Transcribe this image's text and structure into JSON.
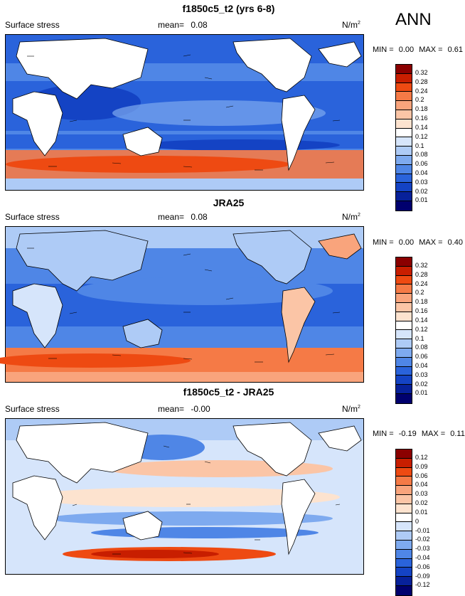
{
  "ann_label": "ANN",
  "panels": [
    {
      "title": "f1850c5_t2 (yrs 6-8)",
      "variable": "Surface stress",
      "mean_label": "mean=",
      "mean_value": "0.08",
      "units_base": "N/m",
      "units_exp": "2",
      "min_label": "MIN =",
      "min_value": "0.00",
      "max_label": "MAX =",
      "max_value": "0.61",
      "levels": [
        "0.32",
        "0.28",
        "0.24",
        "0.2",
        "0.18",
        "0.16",
        "0.14",
        "0.12",
        "0.1",
        "0.08",
        "0.06",
        "0.04",
        "0.03",
        "0.02",
        "0.01"
      ],
      "colors": [
        "#8b0000",
        "#c81e00",
        "#ee4a12",
        "#f57a46",
        "#f9a47c",
        "#fbc5a6",
        "#fde3cf",
        "#ffffff",
        "#d6e5fb",
        "#aecbf6",
        "#7eaaef",
        "#4f86e6",
        "#2a63db",
        "#1443c4",
        "#07219a",
        "#00006e"
      ]
    },
    {
      "title": "JRA25",
      "variable": "Surface stress",
      "mean_label": "mean=",
      "mean_value": "0.08",
      "units_base": "N/m",
      "units_exp": "2",
      "min_label": "MIN =",
      "min_value": "0.00",
      "max_label": "MAX =",
      "max_value": "0.40",
      "levels": [
        "0.32",
        "0.28",
        "0.24",
        "0.2",
        "0.18",
        "0.16",
        "0.14",
        "0.12",
        "0.1",
        "0.08",
        "0.06",
        "0.04",
        "0.03",
        "0.02",
        "0.01"
      ],
      "colors": [
        "#8b0000",
        "#c81e00",
        "#ee4a12",
        "#f57a46",
        "#f9a47c",
        "#fbc5a6",
        "#fde3cf",
        "#ffffff",
        "#d6e5fb",
        "#aecbf6",
        "#7eaaef",
        "#4f86e6",
        "#2a63db",
        "#1443c4",
        "#07219a",
        "#00006e"
      ]
    },
    {
      "title": "f1850c5_t2 - JRA25",
      "variable": "Surface stress",
      "mean_label": "mean=",
      "mean_value": "-0.00",
      "units_base": "N/m",
      "units_exp": "2",
      "min_label": "MIN =",
      "min_value": "-0.19",
      "max_label": "MAX =",
      "max_value": "0.11",
      "levels": [
        "0.12",
        "0.09",
        "0.06",
        "0.04",
        "0.03",
        "0.02",
        "0.01",
        "0",
        "-0.01",
        "-0.02",
        "-0.03",
        "-0.04",
        "-0.06",
        "-0.09",
        "-0.12"
      ],
      "colors": [
        "#8b0000",
        "#c81e00",
        "#ee4a12",
        "#f57a46",
        "#f9a47c",
        "#fbc5a6",
        "#fde3cf",
        "#ffffff",
        "#d6e5fb",
        "#aecbf6",
        "#7eaaef",
        "#4f86e6",
        "#2a63db",
        "#1443c4",
        "#07219a",
        "#00006e"
      ]
    }
  ]
}
